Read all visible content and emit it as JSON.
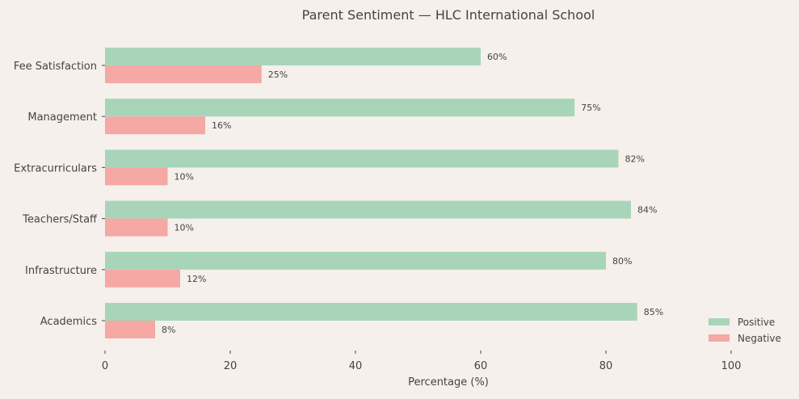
{
  "chart_data": {
    "type": "bar",
    "orientation": "horizontal",
    "title": "Parent Sentiment — HLC International School",
    "xlabel": "Percentage (%)",
    "ylabel": "",
    "xlim": [
      0,
      110
    ],
    "xticks": [
      0,
      20,
      40,
      60,
      80,
      100
    ],
    "categories": [
      "Fee Satisfaction",
      "Management",
      "Extracurriculars",
      "Teachers/Staff",
      "Infrastructure",
      "Academics"
    ],
    "series": [
      {
        "name": "Positive",
        "color": "#a8d5ba",
        "values": [
          60,
          75,
          82,
          84,
          80,
          85
        ]
      },
      {
        "name": "Negative",
        "color": "#f5a8a4",
        "values": [
          25,
          16,
          10,
          10,
          12,
          8
        ]
      }
    ],
    "data_label_suffix": "%",
    "grid": false,
    "legend_position": "lower-right"
  }
}
